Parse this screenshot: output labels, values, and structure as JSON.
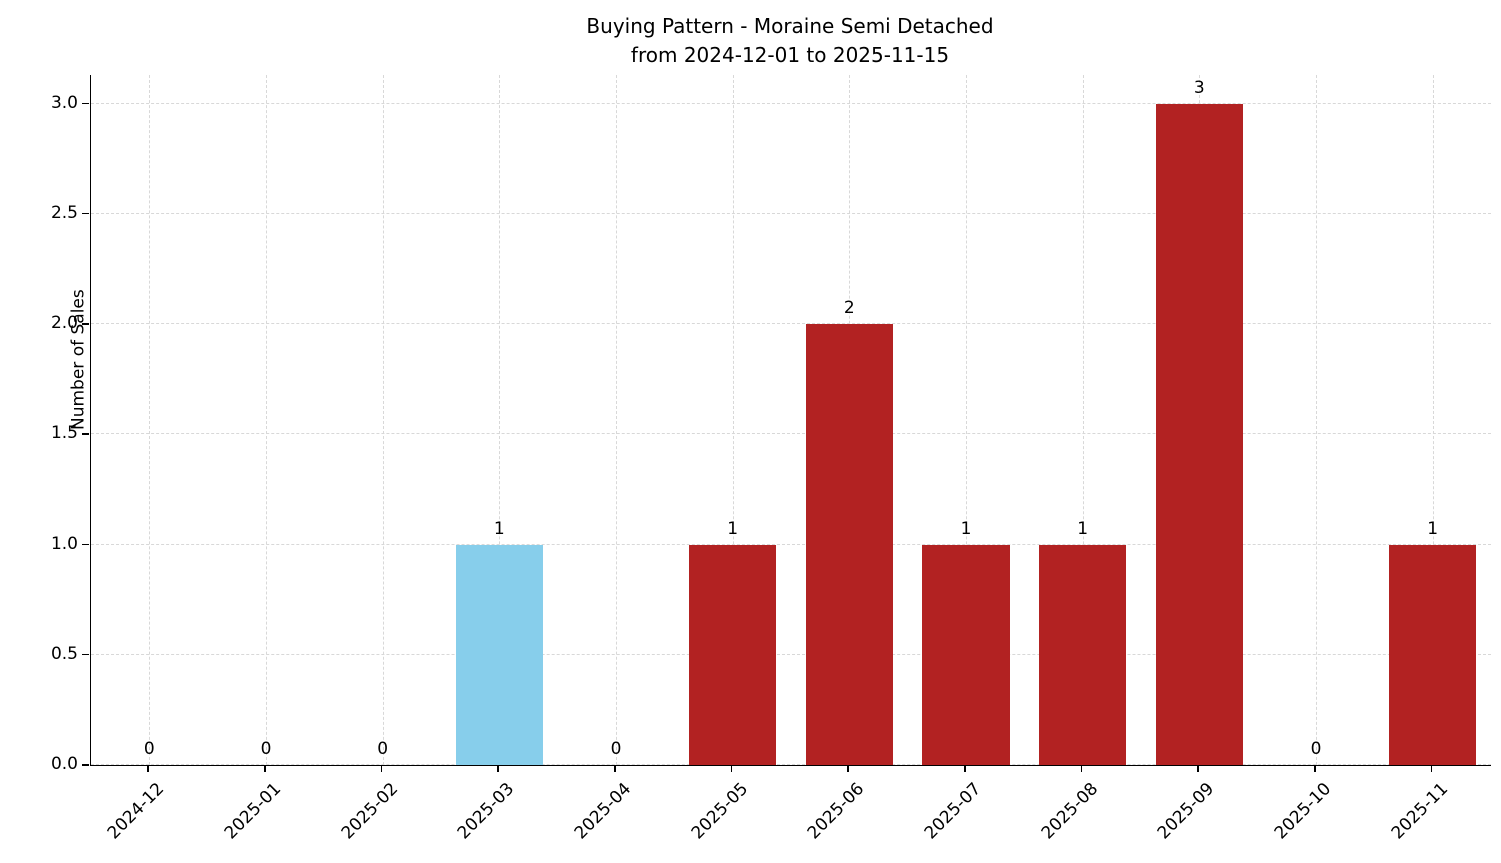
{
  "chart_data": {
    "type": "bar",
    "title": "Buying Pattern - Moraine Semi Detached",
    "subtitle": "from 2024-12-01 to 2025-11-15",
    "xlabel": "",
    "ylabel": "Number of Sales",
    "categories": [
      "2024-12",
      "2025-01",
      "2025-02",
      "2025-03",
      "2025-04",
      "2025-05",
      "2025-06",
      "2025-07",
      "2025-08",
      "2025-09",
      "2025-10",
      "2025-11"
    ],
    "values": [
      0,
      0,
      0,
      1,
      0,
      1,
      2,
      1,
      1,
      3,
      0,
      1
    ],
    "bar_colors": [
      "#b22222",
      "#b22222",
      "#b22222",
      "#87ceeb",
      "#b22222",
      "#b22222",
      "#b22222",
      "#b22222",
      "#b22222",
      "#b22222",
      "#b22222",
      "#b22222"
    ],
    "value_labels": [
      "0",
      "0",
      "0",
      "1",
      "0",
      "1",
      "2",
      "1",
      "1",
      "3",
      "0",
      "1"
    ],
    "yticks": [
      0.0,
      0.5,
      1.0,
      1.5,
      2.0,
      2.5,
      3.0
    ],
    "ytick_labels": [
      "0.0",
      "0.5",
      "1.0",
      "1.5",
      "2.0",
      "2.5",
      "3.0"
    ],
    "ylim": [
      0,
      3.13
    ],
    "grid": true,
    "legend": "none"
  },
  "colors": {
    "background": "#ffffff",
    "bar_default": "#b22222",
    "bar_highlight": "#87ceeb",
    "grid": "#d8d8d8",
    "axis": "#000000",
    "text": "#000000"
  }
}
